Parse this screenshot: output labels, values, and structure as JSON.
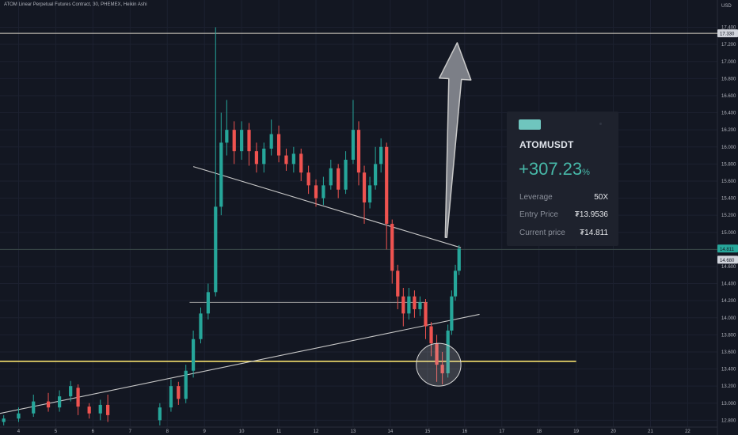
{
  "chart_title": "ATOM Linear Perpetual Futures Contract, 30, PHEMEX, Heikin Ashi",
  "chart_data": {
    "type": "candlestick",
    "currency_label": "USD",
    "y_ticks": [
      "17.400",
      "17.200",
      "17.000",
      "16.800",
      "16.600",
      "16.400",
      "16.200",
      "16.000",
      "15.800",
      "15.600",
      "15.400",
      "15.200",
      "15.000",
      "14.800",
      "14.600",
      "14.400",
      "14.200",
      "14.000",
      "13.800",
      "13.600",
      "13.400",
      "13.200",
      "13.000",
      "12.800"
    ],
    "x_ticks": [
      "4",
      "5",
      "6",
      "7",
      "8",
      "9",
      "10",
      "11",
      "12",
      "13",
      "14",
      "15",
      "16",
      "17",
      "18",
      "19",
      "20",
      "21",
      "22"
    ],
    "ylim": [
      12.72,
      17.72
    ],
    "xlim": [
      3.5,
      22.8
    ],
    "price_labels": [
      {
        "price": 17.33,
        "text": "17.330",
        "color": "#d1d4dc"
      },
      {
        "price": 14.81,
        "text": "14.811",
        "color": "#26a69a"
      },
      {
        "price": 14.68,
        "text": "14.680",
        "color": "#d1d4dc"
      }
    ],
    "horizontal_levels": [
      {
        "price": 17.33,
        "x_start": 3.5,
        "x_end": 22.8,
        "color": "#d9d4c7"
      },
      {
        "price": 14.8,
        "x_start": 3.5,
        "x_end": 22.8,
        "color": "#3a4a48"
      },
      {
        "price": 14.18,
        "x_start": 8.6,
        "x_end": 15.0,
        "color": "#9e9e9e"
      },
      {
        "price": 13.49,
        "x_start": 3.5,
        "x_end": 19.0,
        "color": "#f5e06e"
      }
    ],
    "trend_lines": [
      {
        "from": [
          3.5,
          12.88
        ],
        "to": [
          16.4,
          14.04
        ],
        "color": "#c9c9c9"
      },
      {
        "from": [
          8.7,
          15.77
        ],
        "to": [
          15.9,
          14.82
        ],
        "color": "#c9c9c9"
      }
    ],
    "highlight_circle": {
      "center": [
        15.3,
        13.45
      ],
      "radii": [
        1.2,
        0.25
      ]
    },
    "arrow": {
      "tail": [
        15.5,
        14.94
      ],
      "head": [
        15.8,
        17.22
      ]
    },
    "series": [
      {
        "x": 3.6,
        "o": 12.78,
        "c": 12.82,
        "h": 12.86,
        "l": 12.74
      },
      {
        "x": 4.0,
        "o": 12.82,
        "c": 12.88,
        "h": 12.95,
        "l": 12.78
      },
      {
        "x": 4.4,
        "o": 12.88,
        "c": 13.02,
        "h": 13.1,
        "l": 12.84
      },
      {
        "x": 4.8,
        "o": 13.02,
        "c": 12.95,
        "h": 13.12,
        "l": 12.9
      },
      {
        "x": 5.1,
        "o": 12.95,
        "c": 13.08,
        "h": 13.15,
        "l": 12.9
      },
      {
        "x": 5.4,
        "o": 13.08,
        "c": 13.2,
        "h": 13.26,
        "l": 13.02
      },
      {
        "x": 5.6,
        "o": 13.18,
        "c": 12.96,
        "h": 13.22,
        "l": 12.86
      },
      {
        "x": 5.9,
        "o": 12.96,
        "c": 12.88,
        "h": 13.0,
        "l": 12.82
      },
      {
        "x": 6.2,
        "o": 12.88,
        "c": 12.98,
        "h": 13.04,
        "l": 12.8
      },
      {
        "x": 6.4,
        "o": 12.98,
        "c": 12.86,
        "h": 13.1,
        "l": 12.78
      },
      {
        "x": 7.8,
        "o": 12.8,
        "c": 12.95,
        "h": 13.0,
        "l": 12.74
      },
      {
        "x": 8.1,
        "o": 12.95,
        "c": 13.2,
        "h": 13.28,
        "l": 12.9
      },
      {
        "x": 8.3,
        "o": 13.2,
        "c": 13.05,
        "h": 13.25,
        "l": 12.98
      },
      {
        "x": 8.5,
        "o": 13.05,
        "c": 13.38,
        "h": 13.45,
        "l": 13.0
      },
      {
        "x": 8.7,
        "o": 13.38,
        "c": 13.75,
        "h": 13.85,
        "l": 13.3
      },
      {
        "x": 8.9,
        "o": 13.75,
        "c": 14.05,
        "h": 14.12,
        "l": 13.7
      },
      {
        "x": 9.1,
        "o": 14.05,
        "c": 14.3,
        "h": 14.4,
        "l": 13.98
      },
      {
        "x": 9.3,
        "o": 14.3,
        "c": 15.3,
        "h": 17.4,
        "l": 14.25
      },
      {
        "x": 9.45,
        "o": 15.3,
        "c": 16.05,
        "h": 16.4,
        "l": 15.2
      },
      {
        "x": 9.6,
        "o": 16.05,
        "c": 16.2,
        "h": 16.55,
        "l": 15.9
      },
      {
        "x": 9.8,
        "o": 16.2,
        "c": 15.95,
        "h": 16.3,
        "l": 15.8
      },
      {
        "x": 10.0,
        "o": 15.95,
        "c": 16.2,
        "h": 16.3,
        "l": 15.85
      },
      {
        "x": 10.2,
        "o": 16.2,
        "c": 15.95,
        "h": 16.28,
        "l": 15.78
      },
      {
        "x": 10.4,
        "o": 15.95,
        "c": 15.8,
        "h": 16.05,
        "l": 15.7
      },
      {
        "x": 10.6,
        "o": 15.8,
        "c": 15.98,
        "h": 16.05,
        "l": 15.7
      },
      {
        "x": 10.8,
        "o": 15.98,
        "c": 16.15,
        "h": 16.32,
        "l": 15.9
      },
      {
        "x": 11.0,
        "o": 16.15,
        "c": 15.9,
        "h": 16.25,
        "l": 15.82
      },
      {
        "x": 11.2,
        "o": 15.9,
        "c": 15.8,
        "h": 15.98,
        "l": 15.72
      },
      {
        "x": 11.4,
        "o": 15.8,
        "c": 15.92,
        "h": 16.0,
        "l": 15.7
      },
      {
        "x": 11.6,
        "o": 15.92,
        "c": 15.7,
        "h": 15.98,
        "l": 15.6
      },
      {
        "x": 11.8,
        "o": 15.7,
        "c": 15.55,
        "h": 15.78,
        "l": 15.45
      },
      {
        "x": 12.0,
        "o": 15.55,
        "c": 15.4,
        "h": 15.62,
        "l": 15.3
      },
      {
        "x": 12.2,
        "o": 15.4,
        "c": 15.55,
        "h": 15.65,
        "l": 15.32
      },
      {
        "x": 12.4,
        "o": 15.55,
        "c": 15.75,
        "h": 15.85,
        "l": 15.5
      },
      {
        "x": 12.6,
        "o": 15.75,
        "c": 15.5,
        "h": 15.8,
        "l": 15.4
      },
      {
        "x": 12.8,
        "o": 15.5,
        "c": 15.85,
        "h": 15.95,
        "l": 15.45
      },
      {
        "x": 13.0,
        "o": 15.85,
        "c": 16.2,
        "h": 16.55,
        "l": 15.8
      },
      {
        "x": 13.15,
        "o": 16.2,
        "c": 15.7,
        "h": 16.3,
        "l": 15.55
      },
      {
        "x": 13.3,
        "o": 15.7,
        "c": 15.35,
        "h": 15.78,
        "l": 15.1
      },
      {
        "x": 13.45,
        "o": 15.35,
        "c": 15.55,
        "h": 15.65,
        "l": 15.28
      },
      {
        "x": 13.6,
        "o": 15.55,
        "c": 15.8,
        "h": 16.0,
        "l": 15.5
      },
      {
        "x": 13.75,
        "o": 15.8,
        "c": 16.0,
        "h": 16.1,
        "l": 15.7
      },
      {
        "x": 13.9,
        "o": 16.0,
        "c": 15.1,
        "h": 16.05,
        "l": 14.8
      },
      {
        "x": 14.05,
        "o": 15.1,
        "c": 14.55,
        "h": 15.15,
        "l": 14.4
      },
      {
        "x": 14.2,
        "o": 14.55,
        "c": 14.25,
        "h": 14.62,
        "l": 14.1
      },
      {
        "x": 14.35,
        "o": 14.25,
        "c": 14.05,
        "h": 14.35,
        "l": 13.9
      },
      {
        "x": 14.5,
        "o": 14.05,
        "c": 14.25,
        "h": 14.35,
        "l": 13.98
      },
      {
        "x": 14.65,
        "o": 14.25,
        "c": 14.1,
        "h": 14.32,
        "l": 14.0
      },
      {
        "x": 14.8,
        "o": 14.1,
        "c": 14.18,
        "h": 14.25,
        "l": 14.02
      },
      {
        "x": 14.95,
        "o": 14.18,
        "c": 13.9,
        "h": 14.22,
        "l": 13.75
      },
      {
        "x": 15.1,
        "o": 13.9,
        "c": 13.7,
        "h": 13.95,
        "l": 13.55
      },
      {
        "x": 15.25,
        "o": 13.7,
        "c": 13.45,
        "h": 13.8,
        "l": 13.25
      },
      {
        "x": 15.4,
        "o": 13.45,
        "c": 13.35,
        "h": 13.6,
        "l": 13.22
      },
      {
        "x": 15.55,
        "o": 13.35,
        "c": 13.85,
        "h": 13.92,
        "l": 13.3
      },
      {
        "x": 15.65,
        "o": 13.85,
        "c": 14.25,
        "h": 14.32,
        "l": 13.8
      },
      {
        "x": 15.75,
        "o": 14.25,
        "c": 14.55,
        "h": 14.62,
        "l": 14.2
      },
      {
        "x": 15.85,
        "o": 14.55,
        "c": 14.81,
        "h": 14.85,
        "l": 14.5
      }
    ]
  },
  "card": {
    "symbol": "ATOMUSDT",
    "pnl": "+307.23",
    "pnl_unit": "%",
    "rows": [
      {
        "label": "Leverage",
        "value": "50X"
      },
      {
        "label": "Entry Price",
        "value": "₮13.9536"
      },
      {
        "label": "Current price",
        "value": "₮14.811"
      }
    ]
  },
  "colors": {
    "background": "#131722",
    "grid": "#1c2130",
    "up": "#26a69a",
    "down": "#ef5350",
    "accent": "#47b8a8"
  }
}
